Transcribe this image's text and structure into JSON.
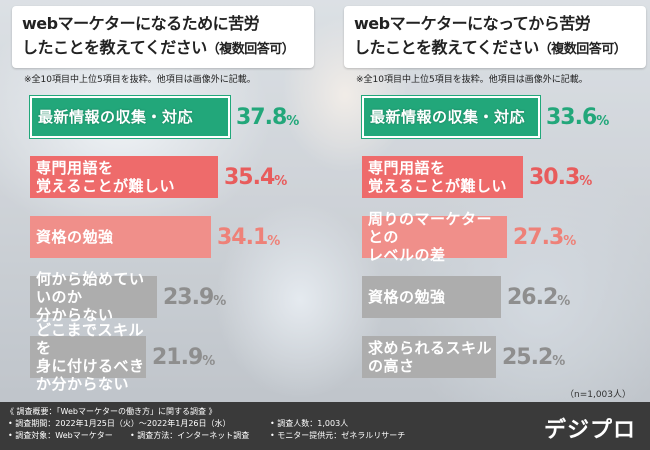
{
  "chart_data": [
    {
      "type": "bar",
      "orientation": "horizontal",
      "title_lines": [
        "webマーケターになるために苦労",
        "したことを教えてください"
      ],
      "title_suffix": "（複数回答可）",
      "note": "※全10項目中上位5項目を抜粋。他項目は画像外に記載。",
      "unit": "%",
      "categories": [
        [
          "最新情報の収集・対応"
        ],
        [
          "専門用語を",
          "覚えることが難しい"
        ],
        [
          "資格の勉強"
        ],
        [
          "何から始めていいのか",
          "分からない"
        ],
        [
          "どこまでスキルを",
          "身に付けるべきか分からない"
        ]
      ],
      "values": [
        37.8,
        35.4,
        34.1,
        23.9,
        21.9
      ],
      "value_labels": [
        [
          "37.8",
          "%"
        ],
        [
          "35.4",
          "%"
        ],
        [
          "34.1",
          "%"
        ],
        [
          "23.9",
          "%"
        ],
        [
          "21.9",
          "%"
        ]
      ]
    },
    {
      "type": "bar",
      "orientation": "horizontal",
      "title_lines": [
        "webマーケターになってから苦労",
        "したことを教えてください"
      ],
      "title_suffix": "（複数回答可）",
      "note": "※全10項目中上位5項目を抜粋。他項目は画像外に記載。",
      "unit": "%",
      "categories": [
        [
          "最新情報の収集・対応"
        ],
        [
          "専門用語を",
          "覚えることが難しい"
        ],
        [
          "周りのマーケターとの",
          "レベルの差"
        ],
        [
          "資格の勉強"
        ],
        [
          "求められるスキルの高さ"
        ]
      ],
      "values": [
        33.6,
        30.3,
        27.3,
        26.2,
        25.2
      ],
      "value_labels": [
        [
          "33.6",
          "%"
        ],
        [
          "30.3",
          "%"
        ],
        [
          "27.3",
          "%"
        ],
        [
          "26.2",
          "%"
        ],
        [
          "25.2",
          "%"
        ]
      ],
      "sample": "（n=1,003人）"
    }
  ],
  "colors": {
    "green": "#22a77a",
    "coral": "#ee6b6b",
    "coral_light": "#f08f8a",
    "gray": "#adadad",
    "footer_bg": "#3a3a3a"
  },
  "footer": {
    "heading": "《 調査概要：「Webマーケターの働き方」に関する調査 》",
    "period": "• 調査期間：2022年1月25日（火）～2022年1月26日（水）",
    "target": "• 調査対象：Webマーケター",
    "method": "• 調査方法：インターネット調査",
    "people": "• 調査人数：1,003人",
    "provider": "• モニター提供元：ゼネラルリサーチ",
    "logo": "デジプロ"
  }
}
